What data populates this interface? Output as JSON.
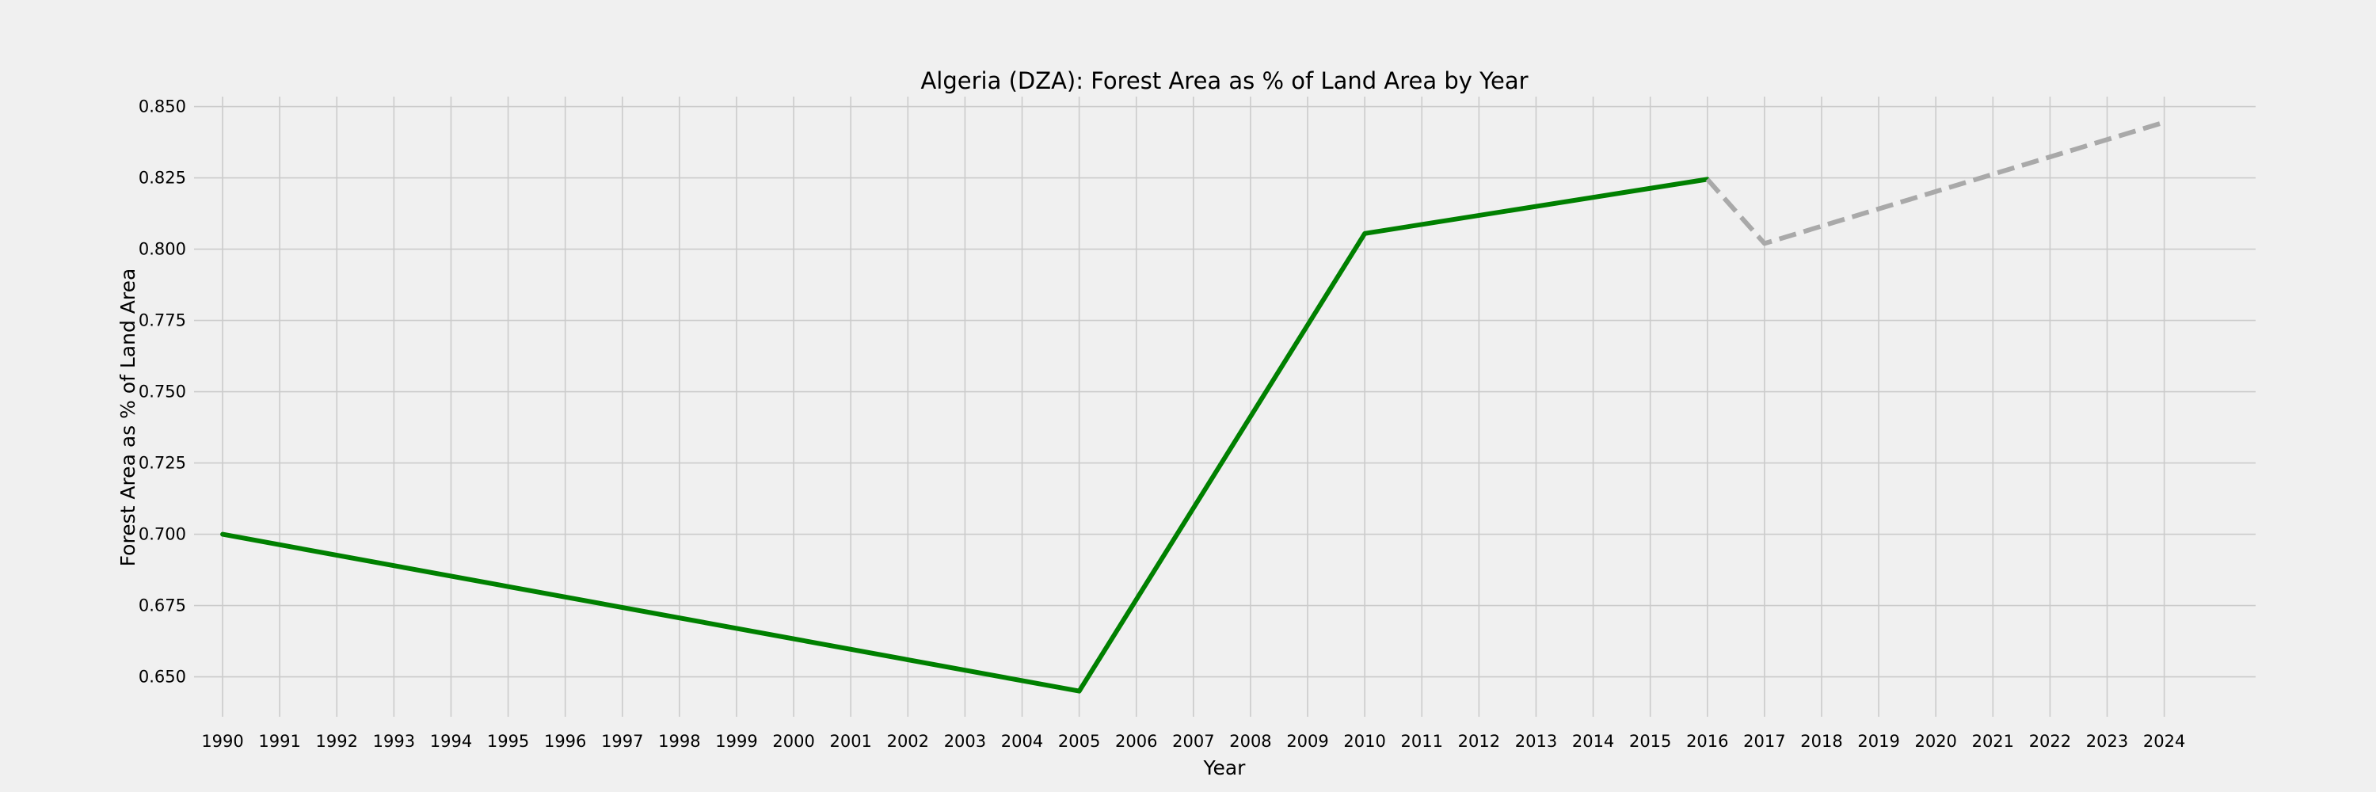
{
  "chart_data": {
    "type": "line",
    "title": "Algeria (DZA): Forest Area as % of Land Area by Year",
    "xlabel": "Year",
    "ylabel": "Forest Area as % of Land Area",
    "xlim": [
      1989.5,
      2025.6
    ],
    "ylim": [
      0.636,
      0.8535
    ],
    "x_ticks": [
      1990,
      1991,
      1992,
      1993,
      1994,
      1995,
      1996,
      1997,
      1998,
      1999,
      2000,
      2001,
      2002,
      2003,
      2004,
      2005,
      2006,
      2007,
      2008,
      2009,
      2010,
      2011,
      2012,
      2013,
      2014,
      2015,
      2016,
      2017,
      2018,
      2019,
      2020,
      2021,
      2022,
      2023,
      2024
    ],
    "y_ticks": [
      0.65,
      0.675,
      0.7,
      0.725,
      0.75,
      0.775,
      0.8,
      0.825,
      0.85
    ],
    "grid": true,
    "background_color": "#f0f0f0",
    "grid_color": "#cbcbcb",
    "series": [
      {
        "style": "solid",
        "color": "#008000",
        "x": [
          1990,
          2005,
          2010,
          2016
        ],
        "y": [
          0.7,
          0.645,
          0.8055,
          0.8245
        ]
      },
      {
        "style": "dashed",
        "color": "#a9a9a9",
        "x": [
          2016,
          2017,
          2024
        ],
        "y": [
          0.8245,
          0.802,
          0.8445
        ]
      }
    ]
  }
}
